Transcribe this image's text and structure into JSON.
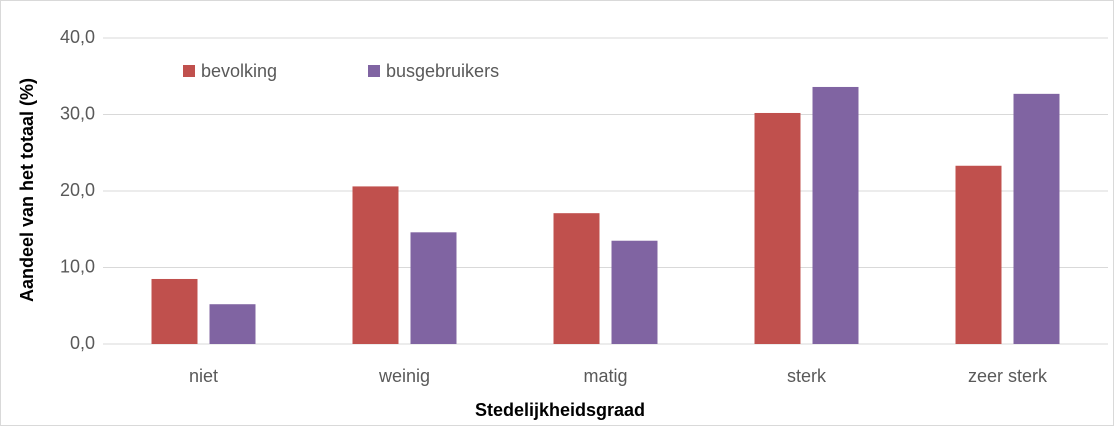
{
  "chart_data": {
    "type": "bar",
    "categories": [
      "niet",
      "weinig",
      "matig",
      "sterk",
      "zeer sterk"
    ],
    "series": [
      {
        "name": "bevolking",
        "color": "#c0504d",
        "values": [
          8.5,
          20.6,
          17.1,
          30.2,
          23.3
        ]
      },
      {
        "name": "busgebruikers",
        "color": "#8064a2",
        "values": [
          5.2,
          14.6,
          13.5,
          33.6,
          32.7
        ]
      }
    ],
    "x_label": "Stedelijkheidsgraad",
    "y_label": "Aandeel van het totaal (%)",
    "ylim": [
      0,
      40
    ],
    "yticks": [
      {
        "value": 0,
        "label": "0,0"
      },
      {
        "value": 10,
        "label": "10,0"
      },
      {
        "value": 20,
        "label": "20,0"
      },
      {
        "value": 30,
        "label": "30,0"
      },
      {
        "value": 40,
        "label": "40,0"
      }
    ],
    "grid": true,
    "legend": "top-left"
  }
}
